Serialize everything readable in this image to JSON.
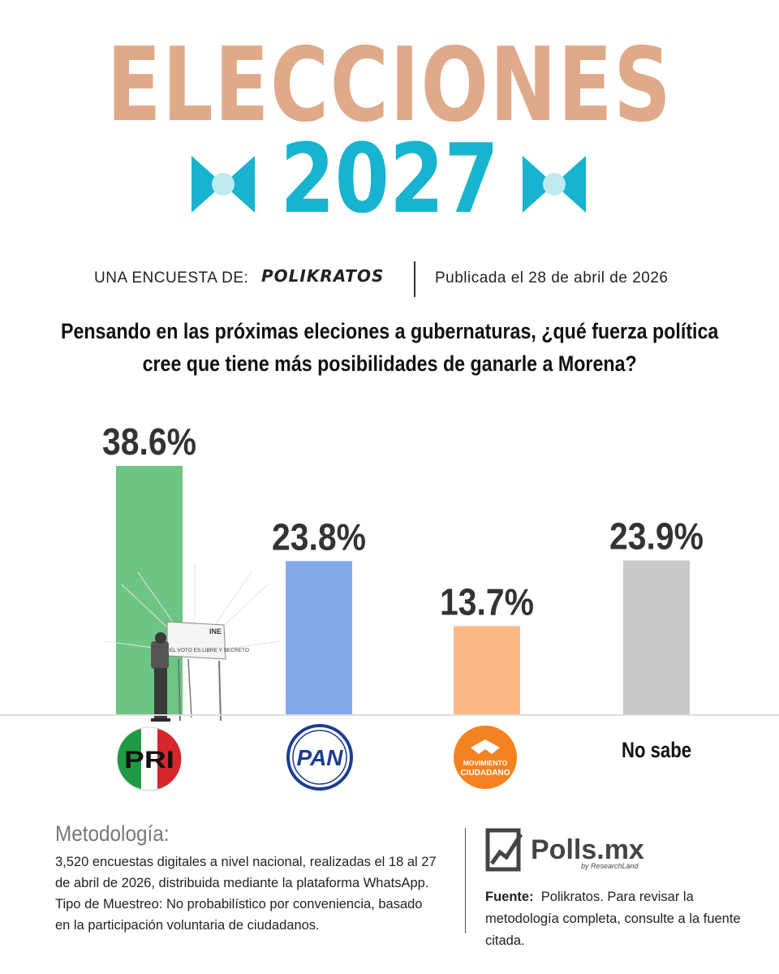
{
  "header": {
    "title": "ELECCIONES",
    "year": "2027",
    "title_color": "#e0a98a",
    "year_color": "#17b3cf"
  },
  "byline": {
    "label": "UNA ENCUESTA DE:",
    "brand": "POLIKRATOS",
    "published": "Publicada el 28 de abril de 2026"
  },
  "question": {
    "line1": "Pensando en las próximas eleciones a gubernaturas, ¿qué fuerza política",
    "line2": "cree que tiene más posibilidades de ganarle a Morena?"
  },
  "chart_data": {
    "type": "bar",
    "categories": [
      "PRI",
      "PAN",
      "MOVIMIENTO CIUDADANO",
      "No sabe"
    ],
    "values": [
      38.6,
      23.8,
      13.7,
      23.9
    ],
    "value_labels": [
      "38.6%",
      "23.8%",
      "13.7%",
      "23.9%"
    ],
    "colors": [
      "#6cc583",
      "#82a9ea",
      "#fdb985",
      "#c9c9c9"
    ],
    "ylim": [
      0,
      40
    ],
    "grid": false,
    "legend": "none"
  },
  "logos": {
    "pri": "PRI",
    "pan": "PAN",
    "mc_line1": "MOVIMIENTO",
    "mc_line2": "CIUDADANO",
    "no_sabe": "No sabe"
  },
  "booth": {
    "brand": "INE",
    "slogan": "EL VOTO ES LIBRE Y SECRETO"
  },
  "methodology": {
    "title": "Metodología:",
    "p1": "3,520 encuestas digitales a nivel nacional, realizadas el 18 al 27 de abril de 2026, distribuida mediante la plataforma WhatsApp.",
    "p2": "Tipo de Muestreo: No probabilístico por conveniencia, basado en la participación voluntaria de ciudadanos."
  },
  "polls": {
    "name": "Polls.mx",
    "sub": "by ResearchLand"
  },
  "source": {
    "label": "Fuente:",
    "text": "Polikratos. Para revisar la metodología completa, consulte a la fuente citada."
  }
}
